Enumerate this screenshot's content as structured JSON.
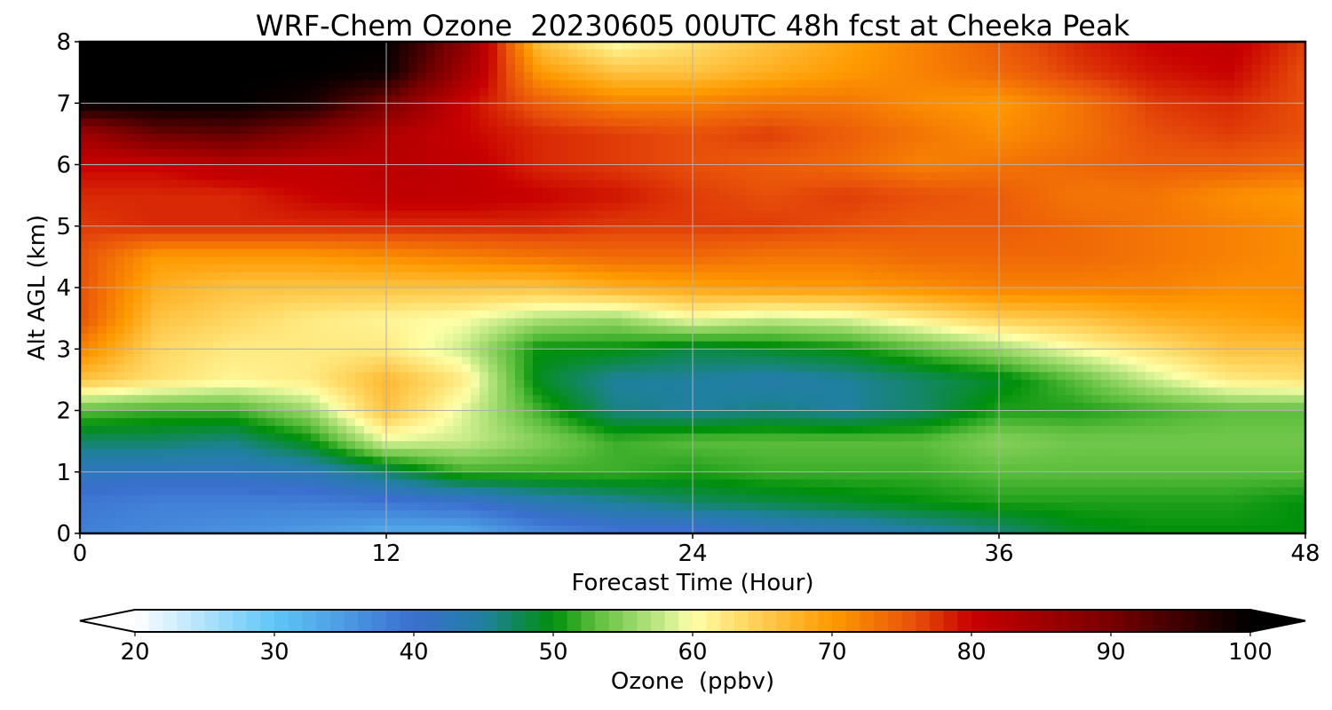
{
  "chart_data": {
    "type": "heatmap",
    "title": "WRF-Chem Ozone  20230605 00UTC 48h fcst at Cheeka Peak",
    "xlabel": "Forecast Time (Hour)",
    "ylabel": "Alt AGL (km)",
    "xlim": [
      0,
      48
    ],
    "ylim": [
      0,
      8
    ],
    "x_ticks": [
      0,
      12,
      24,
      36,
      48
    ],
    "x_tick_labels": [
      "0",
      "12",
      "24",
      "36",
      "48"
    ],
    "y_ticks": [
      0,
      1,
      2,
      3,
      4,
      5,
      6,
      7,
      8
    ],
    "y_tick_labels": [
      "0",
      "1",
      "2",
      "3",
      "4",
      "5",
      "6",
      "7",
      "8"
    ],
    "grid": true,
    "x": [
      0,
      3,
      6,
      9,
      12,
      15,
      18,
      21,
      24,
      27,
      30,
      33,
      36,
      39,
      42,
      45,
      48
    ],
    "y": [
      0,
      0.5,
      1,
      1.5,
      2,
      2.5,
      3,
      3.5,
      4,
      4.5,
      5,
      5.5,
      6,
      6.5,
      7,
      7.5,
      8
    ],
    "z_units": "ppbv",
    "z": [
      [
        38,
        37,
        36,
        35,
        33,
        33,
        37,
        39,
        39,
        41,
        42,
        44,
        46,
        49,
        50,
        50,
        50
      ],
      [
        39,
        38,
        38,
        38,
        39,
        40,
        43,
        45,
        47,
        48,
        49,
        50,
        51,
        51,
        51,
        51,
        50
      ],
      [
        42,
        42,
        42,
        43,
        47,
        52,
        52,
        52,
        51,
        52,
        52,
        52,
        53,
        53,
        53,
        53,
        53
      ],
      [
        47,
        47,
        46,
        50,
        59,
        58,
        55,
        52,
        53,
        53,
        53,
        53,
        55,
        54,
        54,
        54,
        54
      ],
      [
        53,
        52,
        52,
        56,
        66,
        59,
        52,
        46,
        45,
        46,
        45,
        47,
        51,
        51,
        52,
        53,
        53
      ],
      [
        66,
        63,
        61,
        62,
        67,
        62,
        49,
        45,
        45,
        44,
        45,
        47,
        49,
        53,
        58,
        62,
        63
      ],
      [
        72,
        64,
        62,
        62,
        62,
        58,
        50,
        50,
        48,
        49,
        50,
        53,
        56,
        60,
        63,
        66,
        66
      ],
      [
        76,
        66,
        64,
        62,
        61,
        60,
        57,
        56,
        60,
        58,
        59,
        62,
        65,
        66,
        68,
        69,
        70
      ],
      [
        76,
        68,
        66,
        66,
        66,
        66,
        66,
        68,
        69,
        70,
        70,
        71,
        72,
        72,
        72,
        71,
        71
      ],
      [
        76,
        70,
        70,
        70,
        71,
        72,
        73,
        74,
        74,
        73,
        73,
        74,
        74,
        74,
        73,
        72,
        71
      ],
      [
        77,
        78,
        78,
        78,
        78,
        78,
        78,
        77,
        77,
        77,
        76,
        75,
        75,
        74,
        73,
        72,
        71
      ],
      [
        78,
        78,
        78,
        80,
        81,
        81,
        80,
        79,
        77,
        76,
        77,
        76,
        75,
        73,
        73,
        71,
        70
      ],
      [
        80,
        80,
        82,
        81,
        82,
        81,
        78,
        77,
        76,
        75,
        74,
        72,
        73,
        74,
        75,
        75,
        74
      ],
      [
        85,
        91,
        92,
        88,
        83,
        80,
        78,
        77,
        76,
        77,
        75,
        73,
        71,
        73,
        76,
        77,
        76
      ],
      [
        100,
        100,
        100,
        98,
        90,
        80,
        75,
        72,
        72,
        73,
        73,
        71,
        70,
        73,
        77,
        78,
        76
      ],
      [
        100,
        100,
        100,
        100,
        99,
        85,
        70,
        66,
        66,
        68,
        70,
        72,
        74,
        77,
        79,
        80,
        76
      ],
      [
        100,
        100,
        100,
        100,
        100,
        88,
        66,
        60,
        63,
        66,
        69,
        72,
        75,
        78,
        80,
        81,
        77
      ]
    ],
    "colorbar": {
      "label": "Ozone  (ppbv)",
      "min": 20,
      "max": 100,
      "ticks": [
        20,
        30,
        40,
        50,
        60,
        70,
        80,
        90,
        100
      ],
      "tick_labels": [
        "20",
        "30",
        "40",
        "50",
        "60",
        "70",
        "80",
        "90",
        "100"
      ],
      "extend": "both",
      "under_color": "#ffffff",
      "over_color": "#000000",
      "color_stops": [
        {
          "v": 20,
          "c": "#ffffff"
        },
        {
          "v": 30,
          "c": "#5ec6f7"
        },
        {
          "v": 40,
          "c": "#3a6fcf"
        },
        {
          "v": 45,
          "c": "#2080a0"
        },
        {
          "v": 50,
          "c": "#00900a"
        },
        {
          "v": 53,
          "c": "#5cbe3c"
        },
        {
          "v": 58,
          "c": "#c8ec8a"
        },
        {
          "v": 60,
          "c": "#ffffa8"
        },
        {
          "v": 63,
          "c": "#ffe070"
        },
        {
          "v": 70,
          "c": "#ff9a00"
        },
        {
          "v": 76,
          "c": "#e8500a"
        },
        {
          "v": 80,
          "c": "#c80000"
        },
        {
          "v": 90,
          "c": "#780000"
        },
        {
          "v": 100,
          "c": "#000000"
        }
      ]
    }
  }
}
